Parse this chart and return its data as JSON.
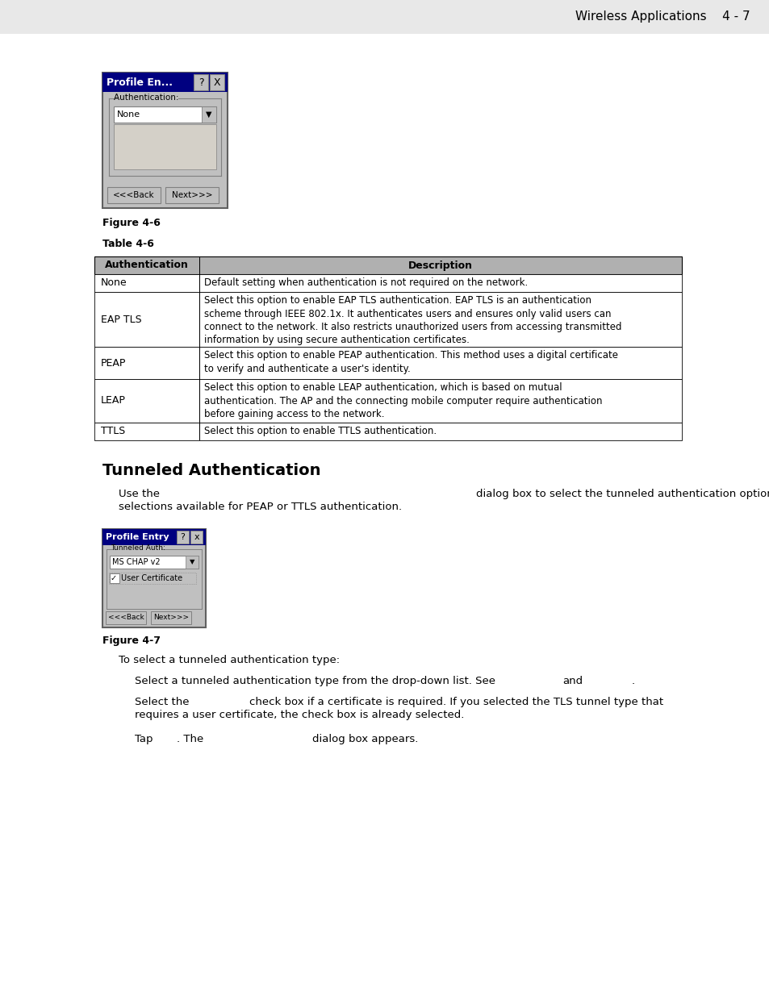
{
  "header_text": "Wireless Applications    4 - 7",
  "header_bg": "#e8e8e8",
  "figure_caption1": "Figure 4-6",
  "table_caption": "Table 4-6",
  "table_header": [
    "Authentication",
    "Description"
  ],
  "table_rows": [
    [
      "None",
      "Default setting when authentication is not required on the network."
    ],
    [
      "EAP TLS",
      "Select this option to enable EAP TLS authentication. EAP TLS is an authentication\nscheme through IEEE 802.1x. It authenticates users and ensures only valid users can\nconnect to the network. It also restricts unauthorized users from accessing transmitted\ninformation by using secure authentication certificates."
    ],
    [
      "PEAP",
      "Select this option to enable PEAP authentication. This method uses a digital certificate\nto verify and authenticate a user's identity."
    ],
    [
      "LEAP",
      "Select this option to enable LEAP authentication, which is based on mutual\nauthentication. The AP and the connecting mobile computer require authentication\nbefore gaining access to the network."
    ],
    [
      "TTLS",
      "Select this option to enable TTLS authentication."
    ]
  ],
  "section_title": "Tunneled Authentication",
  "para1a": "Use the",
  "para1b": "dialog box to select the tunneled authentication options. There are different",
  "para1c": "selections available for PEAP or TTLS authentication.",
  "figure_caption2": "Figure 4-7",
  "para2": "To select a tunneled authentication type:",
  "bullet1a": "Select a tunneled authentication type from the drop-down list. See",
  "bullet1b": "and",
  "bullet1c": ".",
  "bullet2a": "Select the",
  "bullet2b": "check box if a certificate is required. If you selected the TLS tunnel type that",
  "bullet2c": "requires a user certificate, the check box is already selected.",
  "bullet3a": "Tap",
  "bullet3b": ". The",
  "bullet3c": "dialog box appears.",
  "bg_color": "#ffffff",
  "table_header_bg": "#c0c0c0",
  "table_border": "#000000"
}
